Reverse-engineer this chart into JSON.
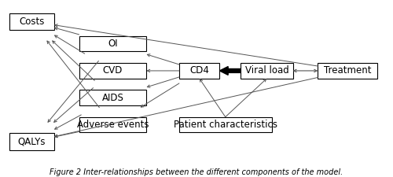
{
  "boxes": {
    "Costs": [
      0.015,
      0.84,
      0.115,
      0.11
    ],
    "QALYs": [
      0.015,
      0.06,
      0.115,
      0.11
    ],
    "OI": [
      0.195,
      0.7,
      0.175,
      0.1
    ],
    "CVD": [
      0.195,
      0.525,
      0.175,
      0.1
    ],
    "AIDS": [
      0.195,
      0.35,
      0.175,
      0.1
    ],
    "Adverse events": [
      0.195,
      0.175,
      0.175,
      0.1
    ],
    "CD4": [
      0.455,
      0.525,
      0.105,
      0.1
    ],
    "Viral load": [
      0.615,
      0.525,
      0.135,
      0.1
    ],
    "Treatment": [
      0.815,
      0.525,
      0.155,
      0.1
    ],
    "Patient characteristics": [
      0.455,
      0.175,
      0.24,
      0.1
    ]
  },
  "bg_color": "#ffffff",
  "box_facecolor": "#ffffff",
  "box_edgecolor": "#000000",
  "arrow_color": "#555555",
  "thick_arrow_color": "#000000",
  "fontsize": 8.5,
  "title": "Figure 2 Inter-relationships between the different components of the model.",
  "title_fontsize": 7.0
}
